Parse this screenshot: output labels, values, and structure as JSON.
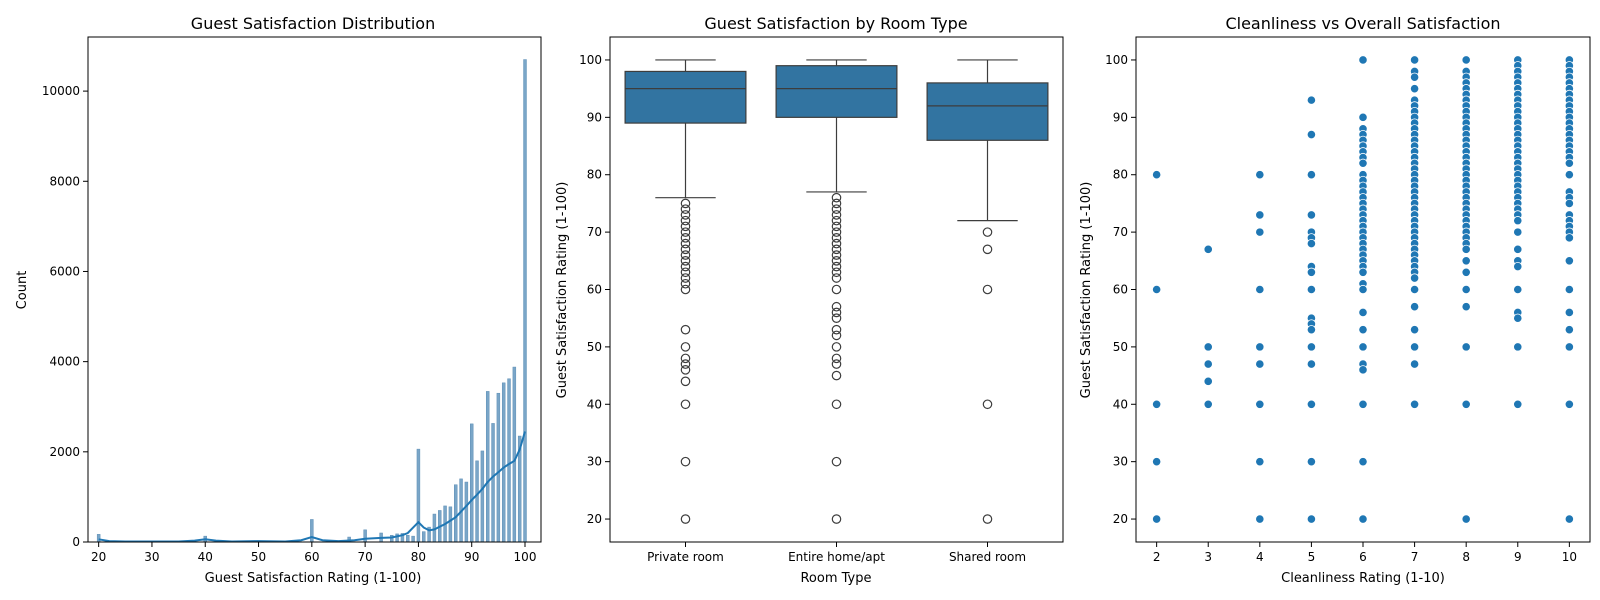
{
  "colors": {
    "accent": "#1f77b4",
    "box_fill": "#3274a1",
    "box_line": "#3d3d3d",
    "hist_bar": "#7aa6c8"
  },
  "chart_data": [
    {
      "type": "histogram",
      "title": "Guest Satisfaction Distribution",
      "xlabel": "Guest Satisfaction Rating (1-100)",
      "ylabel": "Count",
      "xlim": [
        18,
        103
      ],
      "ylim": [
        0,
        11200
      ],
      "xticks": [
        20,
        30,
        40,
        50,
        60,
        70,
        80,
        90,
        100
      ],
      "yticks": [
        0,
        2000,
        4000,
        6000,
        8000,
        10000
      ],
      "grid": false,
      "bars": [
        {
          "x": 20,
          "count": 170
        },
        {
          "x": 40,
          "count": 130
        },
        {
          "x": 50,
          "count": 30
        },
        {
          "x": 60,
          "count": 500
        },
        {
          "x": 67,
          "count": 110
        },
        {
          "x": 70,
          "count": 270
        },
        {
          "x": 73,
          "count": 200
        },
        {
          "x": 75,
          "count": 150
        },
        {
          "x": 76,
          "count": 180
        },
        {
          "x": 77,
          "count": 190
        },
        {
          "x": 78,
          "count": 150
        },
        {
          "x": 79,
          "count": 130
        },
        {
          "x": 80,
          "count": 2060
        },
        {
          "x": 81,
          "count": 230
        },
        {
          "x": 82,
          "count": 330
        },
        {
          "x": 83,
          "count": 620
        },
        {
          "x": 84,
          "count": 700
        },
        {
          "x": 85,
          "count": 800
        },
        {
          "x": 86,
          "count": 780
        },
        {
          "x": 87,
          "count": 1270
        },
        {
          "x": 88,
          "count": 1400
        },
        {
          "x": 89,
          "count": 1330
        },
        {
          "x": 90,
          "count": 2620
        },
        {
          "x": 91,
          "count": 1800
        },
        {
          "x": 92,
          "count": 2020
        },
        {
          "x": 93,
          "count": 3340
        },
        {
          "x": 94,
          "count": 2630
        },
        {
          "x": 95,
          "count": 3300
        },
        {
          "x": 96,
          "count": 3530
        },
        {
          "x": 97,
          "count": 3620
        },
        {
          "x": 98,
          "count": 3880
        },
        {
          "x": 99,
          "count": 2350
        },
        {
          "x": 100,
          "count": 10700
        }
      ],
      "kde": {
        "x": [
          20,
          22,
          25,
          30,
          35,
          38,
          40,
          42,
          45,
          50,
          55,
          58,
          60,
          62,
          65,
          68,
          70,
          73,
          75,
          77,
          78,
          79,
          80,
          81,
          82,
          83,
          85,
          87,
          89,
          90,
          91,
          92,
          93,
          94,
          95,
          96,
          97,
          98,
          99,
          100
        ],
        "y": [
          60,
          20,
          10,
          10,
          10,
          30,
          60,
          30,
          10,
          20,
          10,
          40,
          110,
          40,
          20,
          40,
          70,
          90,
          100,
          150,
          200,
          320,
          440,
          320,
          260,
          280,
          400,
          550,
          800,
          930,
          1050,
          1180,
          1330,
          1450,
          1550,
          1650,
          1730,
          1800,
          2050,
          2450
        ]
      }
    },
    {
      "type": "box",
      "title": "Guest Satisfaction by Room Type",
      "xlabel": "Room Type",
      "ylabel": "Guest Satisfaction Rating (1-100)",
      "ylim": [
        16,
        104
      ],
      "yticks": [
        20,
        30,
        40,
        50,
        60,
        70,
        80,
        90,
        100
      ],
      "grid": false,
      "categories": [
        "Private room",
        "Entire home/apt",
        "Shared room"
      ],
      "boxes": [
        {
          "category": "Private room",
          "whisker_low": 76,
          "q1": 89,
          "median": 95,
          "q3": 98,
          "whisker_high": 100,
          "outliers": [
            75,
            74,
            73,
            72,
            71,
            70,
            69,
            68,
            67,
            66,
            65,
            64,
            63,
            62,
            61,
            60,
            53,
            50,
            48,
            47,
            46,
            44,
            40,
            30,
            20
          ]
        },
        {
          "category": "Entire home/apt",
          "whisker_low": 77,
          "q1": 90,
          "median": 95,
          "q3": 99,
          "whisker_high": 100,
          "outliers": [
            76,
            75,
            74,
            73,
            72,
            71,
            70,
            69,
            68,
            67,
            66,
            65,
            64,
            63,
            62,
            60,
            57,
            56,
            55,
            53,
            52,
            50,
            48,
            47,
            45,
            40,
            30,
            20
          ]
        },
        {
          "category": "Shared room",
          "whisker_low": 72,
          "q1": 86,
          "median": 92,
          "q3": 96,
          "whisker_high": 100,
          "outliers": [
            70,
            67,
            60,
            40,
            20
          ]
        }
      ]
    },
    {
      "type": "scatter",
      "title": "Cleanliness vs Overall Satisfaction",
      "xlabel": "Cleanliness Rating (1-10)",
      "ylabel": "Guest Satisfaction Rating (1-100)",
      "xlim": [
        1.6,
        10.4
      ],
      "ylim": [
        16,
        104
      ],
      "xticks": [
        2,
        3,
        4,
        5,
        6,
        7,
        8,
        9,
        10
      ],
      "yticks": [
        20,
        30,
        40,
        50,
        60,
        70,
        80,
        90,
        100
      ],
      "grid": false,
      "points": [
        {
          "x": 2,
          "y": [
            80,
            60,
            40,
            30,
            20
          ]
        },
        {
          "x": 3,
          "y": [
            67,
            50,
            47,
            44,
            40
          ]
        },
        {
          "x": 4,
          "y": [
            80,
            73,
            70,
            60,
            50,
            47,
            40,
            30,
            20
          ]
        },
        {
          "x": 5,
          "y": [
            93,
            87,
            80,
            73,
            70,
            69,
            68,
            64,
            63,
            60,
            55,
            54,
            53,
            50,
            47,
            40,
            30,
            20
          ]
        },
        {
          "x": 6,
          "y": [
            100,
            90,
            88,
            87,
            86,
            85,
            84,
            83,
            82,
            80,
            79,
            78,
            77,
            76,
            75,
            74,
            73,
            72,
            71,
            70,
            69,
            68,
            67,
            66,
            65,
            64,
            63,
            61,
            60,
            56,
            53,
            50,
            47,
            46,
            40,
            30,
            20
          ]
        },
        {
          "x": 7,
          "y": [
            100,
            98,
            97,
            95,
            93,
            92,
            91,
            90,
            89,
            88,
            87,
            86,
            85,
            84,
            83,
            82,
            81,
            80,
            79,
            78,
            77,
            76,
            75,
            74,
            73,
            72,
            71,
            70,
            69,
            68,
            67,
            66,
            65,
            64,
            63,
            62,
            60,
            57,
            53,
            50,
            47,
            40
          ]
        },
        {
          "x": 8,
          "y": [
            100,
            98,
            97,
            96,
            95,
            94,
            93,
            92,
            91,
            90,
            89,
            88,
            87,
            86,
            85,
            84,
            83,
            82,
            81,
            80,
            79,
            78,
            77,
            76,
            75,
            74,
            73,
            72,
            71,
            70,
            69,
            68,
            67,
            65,
            63,
            60,
            57,
            50,
            40,
            20
          ]
        },
        {
          "x": 9,
          "y": [
            100,
            99,
            98,
            97,
            96,
            95,
            94,
            93,
            92,
            91,
            90,
            89,
            88,
            87,
            86,
            85,
            84,
            83,
            82,
            81,
            80,
            79,
            78,
            77,
            76,
            75,
            74,
            73,
            72,
            70,
            67,
            65,
            64,
            60,
            56,
            55,
            50,
            40
          ]
        },
        {
          "x": 10,
          "y": [
            100,
            99,
            98,
            97,
            96,
            95,
            94,
            93,
            92,
            91,
            90,
            89,
            88,
            87,
            86,
            85,
            84,
            83,
            82,
            80,
            77,
            76,
            75,
            73,
            72,
            71,
            70,
            69,
            65,
            60,
            56,
            53,
            50,
            40,
            20
          ]
        }
      ]
    }
  ]
}
